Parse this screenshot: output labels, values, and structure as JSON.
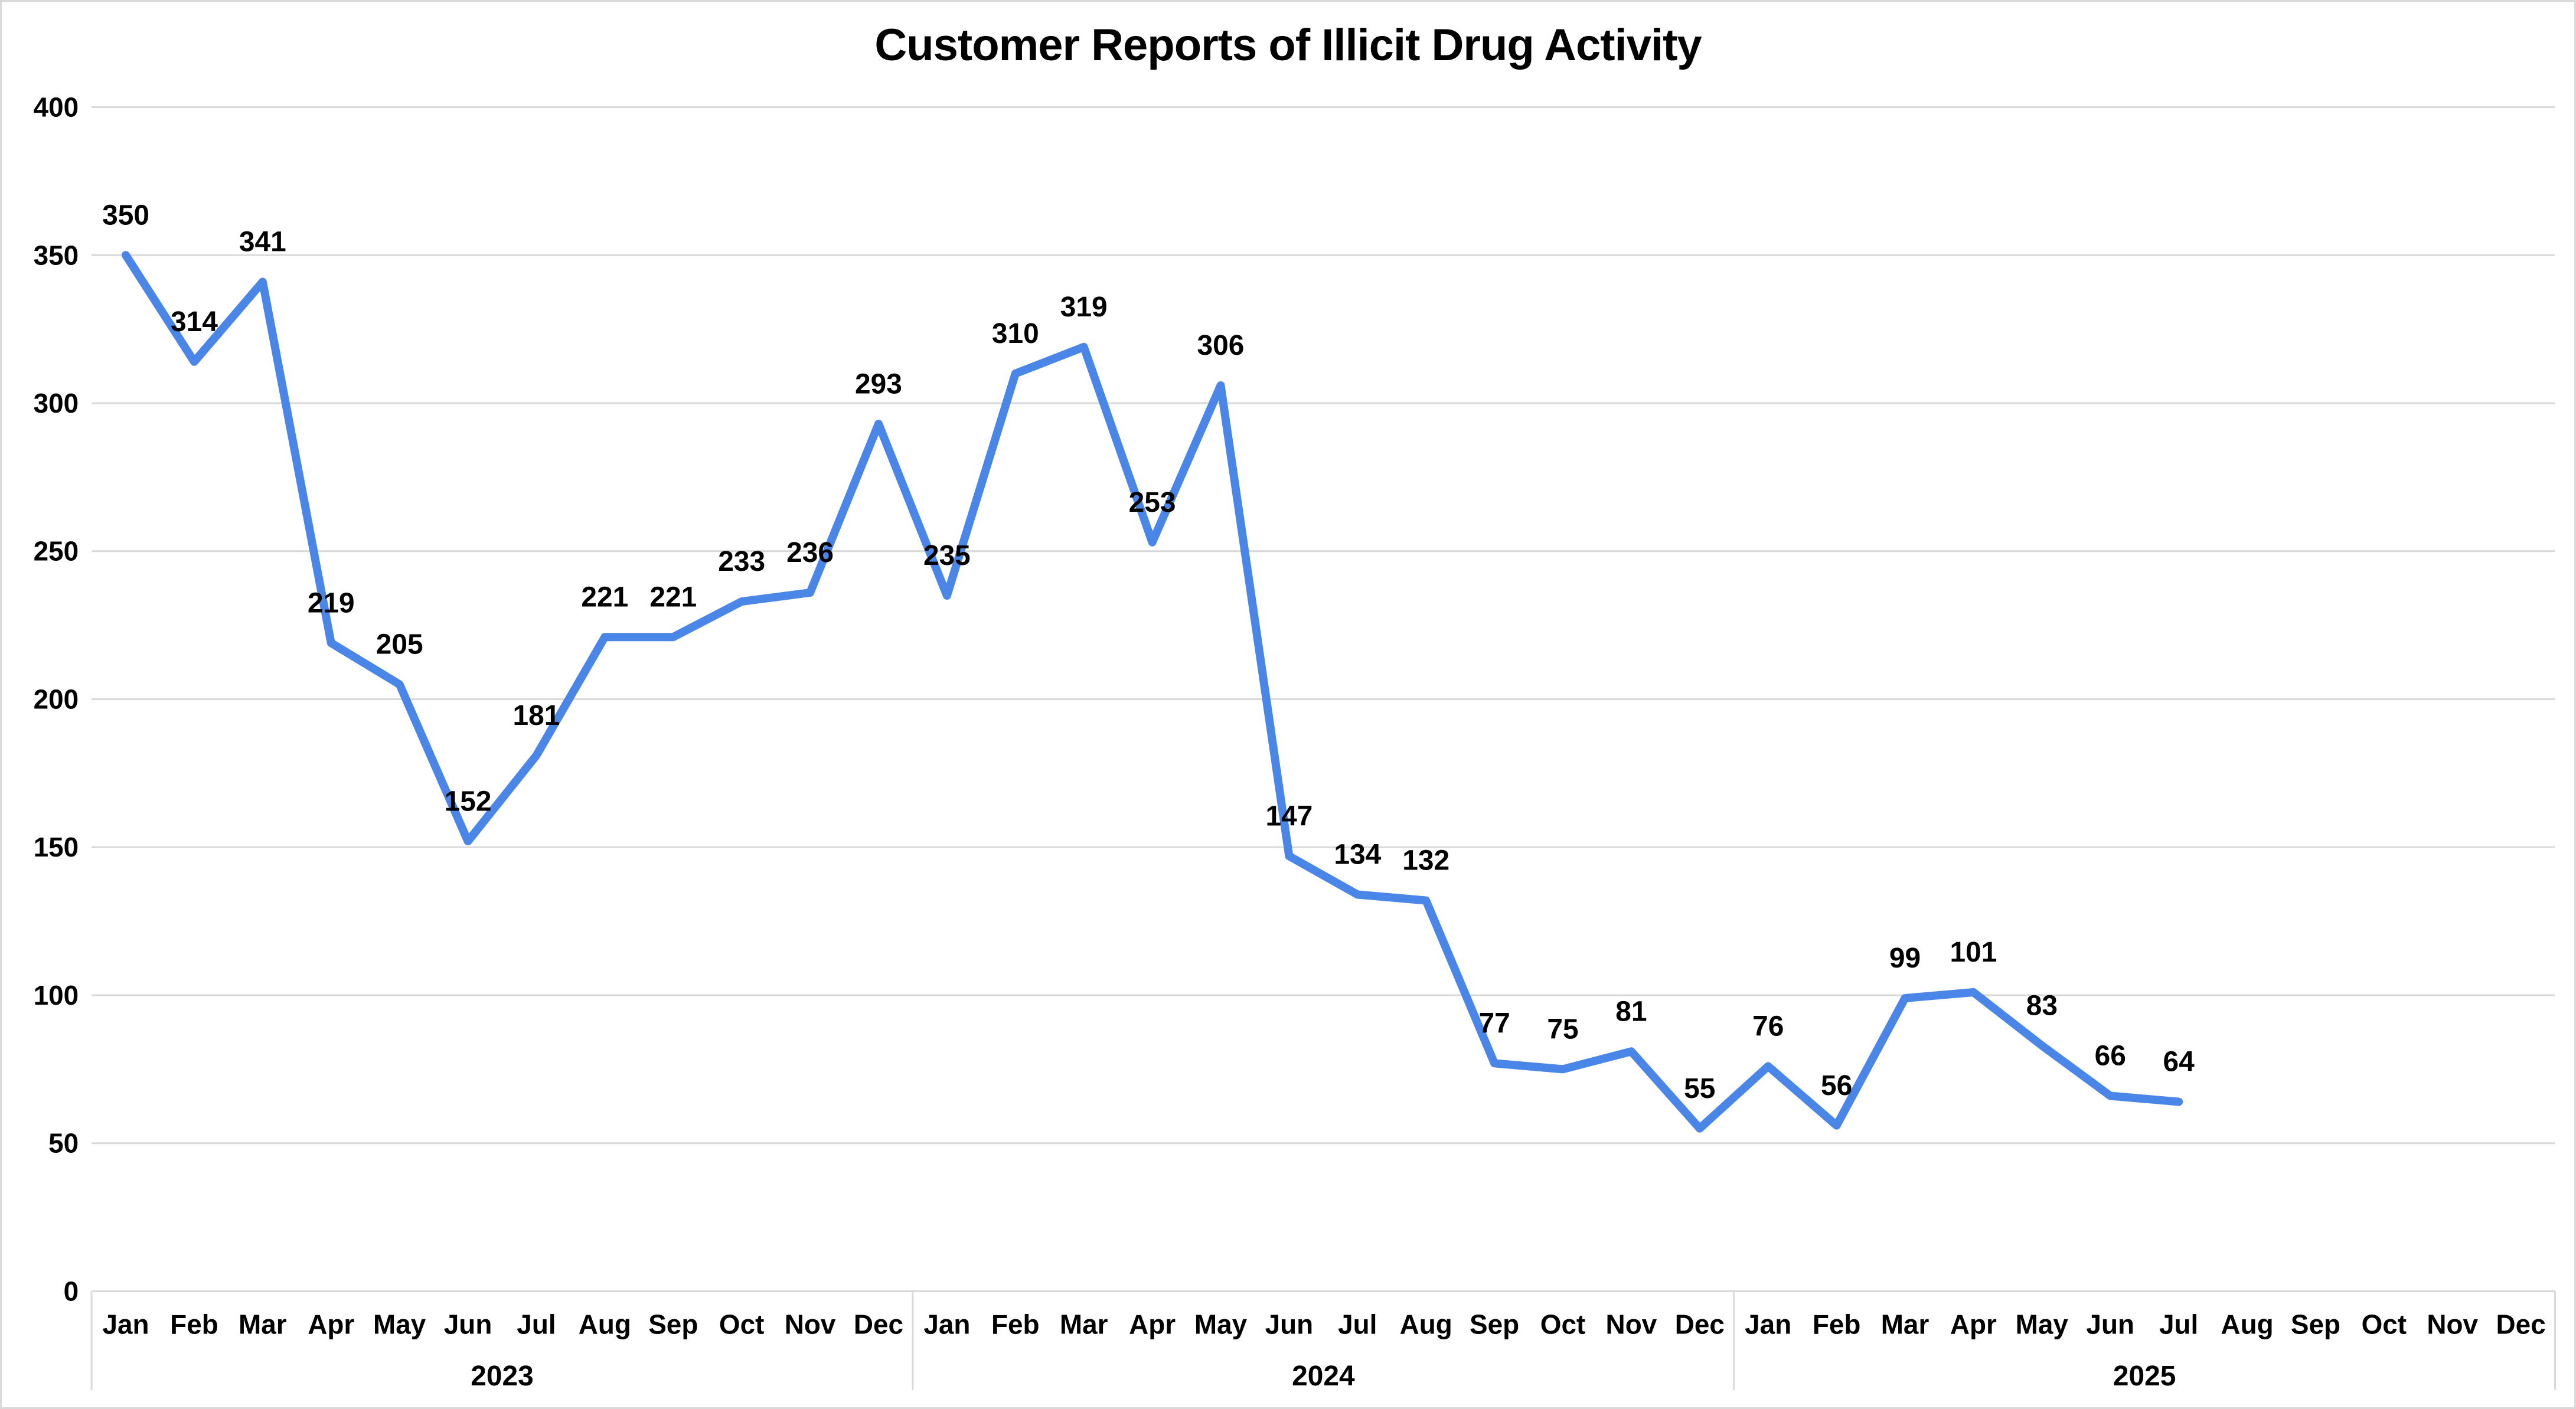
{
  "title": "Customer Reports of Illicit Drug Activity",
  "chart_data": {
    "type": "line",
    "title": "Customer Reports of Illicit Drug Activity",
    "xlabel": "",
    "ylabel": "",
    "years": [
      "2023",
      "2024",
      "2025"
    ],
    "months": [
      "Jan",
      "Feb",
      "Mar",
      "Apr",
      "May",
      "Jun",
      "Jul",
      "Aug",
      "Sep",
      "Oct",
      "Nov",
      "Dec"
    ],
    "series": [
      {
        "values": [
          350,
          314,
          341,
          219,
          205,
          152,
          181,
          221,
          221,
          233,
          236,
          293,
          235,
          310,
          319,
          253,
          306,
          147,
          134,
          132,
          77,
          75,
          81,
          55,
          76,
          56,
          99,
          101,
          83,
          66,
          64,
          null,
          null,
          null,
          null,
          null
        ]
      }
    ],
    "ylim": [
      0,
      400
    ],
    "y_ticks": [
      0,
      50,
      100,
      150,
      200,
      250,
      300,
      350,
      400
    ],
    "grid": "horizontal",
    "legend": "none",
    "data_labels": "above-points",
    "colors": {
      "line": "#4a86e8",
      "data_label": "#000000",
      "axis_text": "#000000",
      "gridline": "#d9d9d9",
      "frame_border": "#d9d9d9",
      "background": "#ffffff"
    }
  }
}
